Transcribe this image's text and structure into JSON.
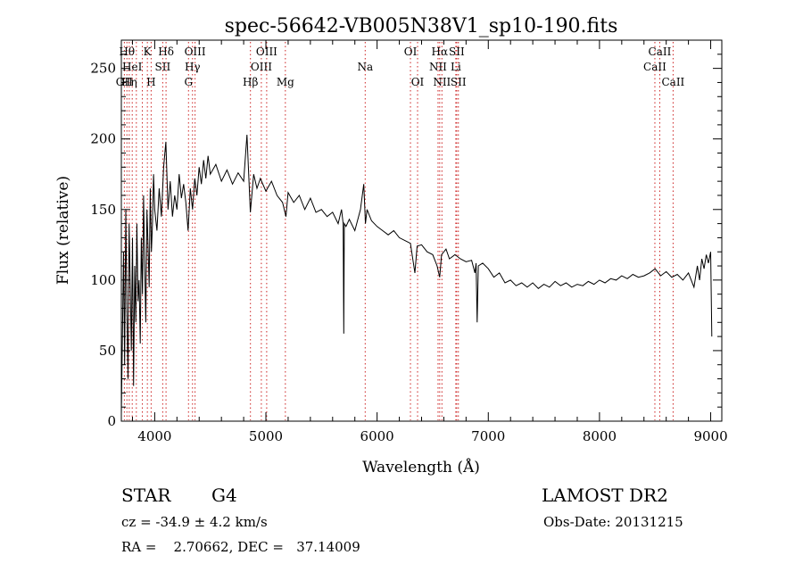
{
  "chart_data": {
    "type": "line",
    "title": "spec-56642-VB005N38V1_sp10-190.fits",
    "xlabel": "Wavelength (Å)",
    "ylabel": "Flux (relative)",
    "xlim": [
      3700,
      9100
    ],
    "ylim": [
      0,
      270
    ],
    "x_ticks": [
      4000,
      5000,
      6000,
      7000,
      8000,
      9000
    ],
    "y_ticks": [
      0,
      50,
      100,
      150,
      200,
      250
    ],
    "x_tick_labels": [
      "4000",
      "5000",
      "6000",
      "7000",
      "8000",
      "9000"
    ],
    "y_tick_labels": [
      "0",
      "50",
      "100",
      "150",
      "200",
      "250"
    ],
    "grid": false,
    "series": [
      {
        "color": "#000000",
        "points": [
          [
            3700,
            5
          ],
          [
            3710,
            60
          ],
          [
            3720,
            120
          ],
          [
            3730,
            40
          ],
          [
            3740,
            150
          ],
          [
            3750,
            80
          ],
          [
            3760,
            30
          ],
          [
            3770,
            140
          ],
          [
            3780,
            95
          ],
          [
            3790,
            50
          ],
          [
            3800,
            130
          ],
          [
            3810,
            25
          ],
          [
            3820,
            110
          ],
          [
            3830,
            70
          ],
          [
            3840,
            140
          ],
          [
            3850,
            85
          ],
          [
            3860,
            100
          ],
          [
            3870,
            55
          ],
          [
            3880,
            130
          ],
          [
            3890,
            90
          ],
          [
            3900,
            160
          ],
          [
            3910,
            110
          ],
          [
            3920,
            70
          ],
          [
            3930,
            150
          ],
          [
            3940,
            125
          ],
          [
            3950,
            95
          ],
          [
            3960,
            165
          ],
          [
            3970,
            120
          ],
          [
            3980,
            140
          ],
          [
            3990,
            175
          ],
          [
            4000,
            150
          ],
          [
            4020,
            135
          ],
          [
            4040,
            165
          ],
          [
            4060,
            145
          ],
          [
            4080,
            180
          ],
          [
            4100,
            198
          ],
          [
            4120,
            150
          ],
          [
            4140,
            170
          ],
          [
            4160,
            145
          ],
          [
            4180,
            160
          ],
          [
            4200,
            150
          ],
          [
            4220,
            175
          ],
          [
            4240,
            158
          ],
          [
            4260,
            168
          ],
          [
            4280,
            155
          ],
          [
            4300,
            135
          ],
          [
            4320,
            165
          ],
          [
            4340,
            150
          ],
          [
            4360,
            172
          ],
          [
            4380,
            160
          ],
          [
            4400,
            180
          ],
          [
            4420,
            168
          ],
          [
            4440,
            185
          ],
          [
            4460,
            172
          ],
          [
            4480,
            188
          ],
          [
            4500,
            175
          ],
          [
            4550,
            182
          ],
          [
            4600,
            170
          ],
          [
            4650,
            178
          ],
          [
            4700,
            168
          ],
          [
            4750,
            176
          ],
          [
            4800,
            170
          ],
          [
            4830,
            203
          ],
          [
            4860,
            148
          ],
          [
            4890,
            175
          ],
          [
            4920,
            165
          ],
          [
            4950,
            172
          ],
          [
            5000,
            163
          ],
          [
            5050,
            170
          ],
          [
            5100,
            160
          ],
          [
            5150,
            155
          ],
          [
            5180,
            145
          ],
          [
            5200,
            162
          ],
          [
            5250,
            155
          ],
          [
            5300,
            160
          ],
          [
            5350,
            150
          ],
          [
            5400,
            158
          ],
          [
            5450,
            148
          ],
          [
            5500,
            150
          ],
          [
            5550,
            145
          ],
          [
            5600,
            148
          ],
          [
            5650,
            140
          ],
          [
            5680,
            150
          ],
          [
            5695,
            140
          ],
          [
            5700,
            62
          ],
          [
            5705,
            140
          ],
          [
            5720,
            138
          ],
          [
            5750,
            143
          ],
          [
            5800,
            135
          ],
          [
            5850,
            150
          ],
          [
            5880,
            168
          ],
          [
            5895,
            140
          ],
          [
            5910,
            150
          ],
          [
            5950,
            142
          ],
          [
            6000,
            138
          ],
          [
            6050,
            135
          ],
          [
            6100,
            132
          ],
          [
            6150,
            135
          ],
          [
            6200,
            130
          ],
          [
            6250,
            128
          ],
          [
            6300,
            126
          ],
          [
            6340,
            105
          ],
          [
            6360,
            124
          ],
          [
            6400,
            125
          ],
          [
            6450,
            120
          ],
          [
            6500,
            118
          ],
          [
            6540,
            110
          ],
          [
            6563,
            102
          ],
          [
            6580,
            118
          ],
          [
            6620,
            122
          ],
          [
            6650,
            115
          ],
          [
            6700,
            118
          ],
          [
            6750,
            115
          ],
          [
            6800,
            113
          ],
          [
            6850,
            114
          ],
          [
            6880,
            105
          ],
          [
            6890,
            112
          ],
          [
            6900,
            70
          ],
          [
            6910,
            110
          ],
          [
            6950,
            112
          ],
          [
            7000,
            108
          ],
          [
            7050,
            102
          ],
          [
            7100,
            105
          ],
          [
            7150,
            98
          ],
          [
            7200,
            100
          ],
          [
            7250,
            96
          ],
          [
            7300,
            98
          ],
          [
            7350,
            95
          ],
          [
            7400,
            98
          ],
          [
            7450,
            94
          ],
          [
            7500,
            97
          ],
          [
            7550,
            95
          ],
          [
            7600,
            99
          ],
          [
            7650,
            96
          ],
          [
            7700,
            98
          ],
          [
            7750,
            95
          ],
          [
            7800,
            97
          ],
          [
            7850,
            96
          ],
          [
            7900,
            99
          ],
          [
            7950,
            97
          ],
          [
            8000,
            100
          ],
          [
            8050,
            98
          ],
          [
            8100,
            101
          ],
          [
            8150,
            100
          ],
          [
            8200,
            103
          ],
          [
            8250,
            101
          ],
          [
            8300,
            104
          ],
          [
            8350,
            102
          ],
          [
            8400,
            103
          ],
          [
            8450,
            105
          ],
          [
            8500,
            108
          ],
          [
            8550,
            103
          ],
          [
            8600,
            106
          ],
          [
            8650,
            102
          ],
          [
            8700,
            104
          ],
          [
            8750,
            100
          ],
          [
            8800,
            105
          ],
          [
            8850,
            95
          ],
          [
            8880,
            110
          ],
          [
            8900,
            100
          ],
          [
            8920,
            115
          ],
          [
            8940,
            108
          ],
          [
            8960,
            118
          ],
          [
            8980,
            112
          ],
          [
            9000,
            120
          ],
          [
            9010,
            60
          ]
        ]
      }
    ],
    "line_markers": [
      {
        "x": 3727,
        "label": "OII",
        "row": 3
      },
      {
        "x": 3750,
        "label": "Hθ",
        "row": 1
      },
      {
        "x": 3771,
        "label": "Hη",
        "row": 3
      },
      {
        "x": 3798,
        "label": "HeI",
        "row": 2
      },
      {
        "x": 3835,
        "label": "",
        "row": 0
      },
      {
        "x": 3889,
        "label": "",
        "row": 0
      },
      {
        "x": 3934,
        "label": "K",
        "row": 1
      },
      {
        "x": 3968,
        "label": "H",
        "row": 3
      },
      {
        "x": 4072,
        "label": "SII",
        "row": 2
      },
      {
        "x": 4102,
        "label": "Hδ",
        "row": 1
      },
      {
        "x": 4304,
        "label": "G",
        "row": 3
      },
      {
        "x": 4340,
        "label": "Hγ",
        "row": 2
      },
      {
        "x": 4363,
        "label": "OIII",
        "row": 1
      },
      {
        "x": 4861,
        "label": "Hβ",
        "row": 3
      },
      {
        "x": 4959,
        "label": "OIII",
        "row": 2
      },
      {
        "x": 5007,
        "label": "OIII",
        "row": 1
      },
      {
        "x": 5175,
        "label": "Mg",
        "row": 3
      },
      {
        "x": 5893,
        "label": "Na",
        "row": 2
      },
      {
        "x": 6300,
        "label": "OI",
        "row": 1
      },
      {
        "x": 6364,
        "label": "OI",
        "row": 3
      },
      {
        "x": 6548,
        "label": "NII",
        "row": 2
      },
      {
        "x": 6563,
        "label": "Hα",
        "row": 1
      },
      {
        "x": 6583,
        "label": "NII",
        "row": 3
      },
      {
        "x": 6708,
        "label": "Li",
        "row": 2
      },
      {
        "x": 6716,
        "label": "SII",
        "row": 1
      },
      {
        "x": 6731,
        "label": "SII",
        "row": 3
      },
      {
        "x": 8498,
        "label": "CaII",
        "row": 2
      },
      {
        "x": 8542,
        "label": "CaII",
        "row": 1
      },
      {
        "x": 8662,
        "label": "CaII",
        "row": 3
      }
    ]
  },
  "info": {
    "class_label": "STAR",
    "subclass": "G4",
    "survey": "LAMOST DR2",
    "redshift_text": "cz = -34.9 ± 4.2 km/s",
    "obs_date_text": "Obs-Date: 20131215",
    "coords_text": "RA =    2.70662, DEC =   37.14009"
  }
}
